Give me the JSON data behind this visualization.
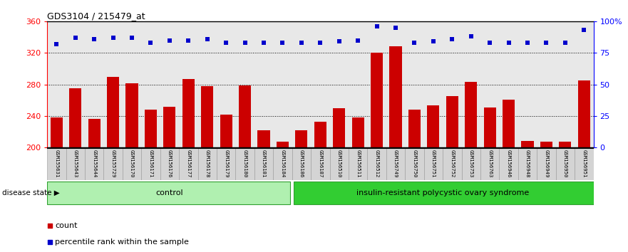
{
  "title": "GDS3104 / 215479_at",
  "samples": [
    "GSM155631",
    "GSM155643",
    "GSM155644",
    "GSM155729",
    "GSM156170",
    "GSM156171",
    "GSM156176",
    "GSM156177",
    "GSM156178",
    "GSM156179",
    "GSM156180",
    "GSM156181",
    "GSM156184",
    "GSM156186",
    "GSM156187",
    "GSM156510",
    "GSM156511",
    "GSM156512",
    "GSM156749",
    "GSM156750",
    "GSM156751",
    "GSM156752",
    "GSM156753",
    "GSM156763",
    "GSM156946",
    "GSM156948",
    "GSM156949",
    "GSM156950",
    "GSM156951"
  ],
  "counts": [
    238,
    275,
    236,
    290,
    281,
    248,
    252,
    287,
    278,
    242,
    279,
    222,
    207,
    222,
    233,
    250,
    238,
    320,
    328,
    248,
    253,
    265,
    283,
    251,
    261,
    208,
    207,
    207,
    285
  ],
  "percentile": [
    82,
    87,
    86,
    87,
    87,
    83,
    85,
    85,
    86,
    83,
    83,
    83,
    83,
    83,
    83,
    84,
    85,
    96,
    95,
    83,
    84,
    86,
    88,
    83,
    83,
    83,
    83,
    83,
    93
  ],
  "group_control_count": 13,
  "bar_color": "#cc0000",
  "dot_color": "#0000cc",
  "bg_plot": "#e8e8e8",
  "ymin": 200,
  "ymax": 360,
  "yticks_left": [
    200,
    240,
    280,
    320,
    360
  ],
  "yticks_right": [
    0,
    25,
    50,
    75,
    100
  ],
  "group1_label": "control",
  "group2_label": "insulin-resistant polycystic ovary syndrome",
  "legend_bar": "count",
  "legend_dot": "percentile rank within the sample",
  "disease_state_label": "disease state"
}
